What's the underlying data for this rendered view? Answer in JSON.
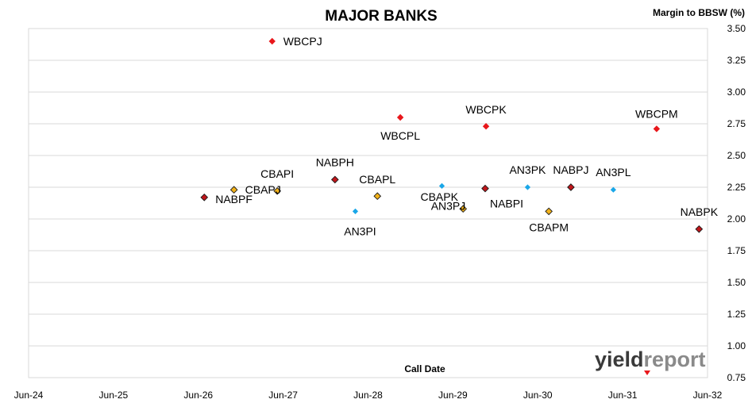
{
  "chart_data": {
    "type": "scatter",
    "title": "MAJOR BANKS",
    "xlabel": "Call Date",
    "ylabel": "Margin to BBSW (%)",
    "ylim": [
      0.75,
      3.5
    ],
    "y_ticks": [
      "0.75",
      "1.00",
      "1.25",
      "1.50",
      "1.75",
      "2.00",
      "2.25",
      "2.50",
      "2.75",
      "3.00",
      "3.25",
      "3.50"
    ],
    "x_ticks": [
      "Jun-24",
      "Jun-25",
      "Jun-26",
      "Jun-27",
      "Jun-28",
      "Jun-29",
      "Jun-30",
      "Jun-31",
      "Jun-32"
    ],
    "grid": "horizontal",
    "watermark": {
      "part1": "yield",
      "part2": "report"
    },
    "colors": {
      "WBC": "#e8171b",
      "NAB": "#c0161b",
      "CBA": "#f2b21b",
      "ANZ": "#1aa7e8"
    },
    "points": [
      {
        "label": "WBCPJ",
        "x": 2.87,
        "y": 3.4,
        "group": "WBC"
      },
      {
        "label": "WBCPL",
        "x": 4.38,
        "y": 2.8,
        "group": "WBC"
      },
      {
        "label": "WBCPK",
        "x": 5.39,
        "y": 2.73,
        "group": "WBC"
      },
      {
        "label": "WBCPM",
        "x": 7.4,
        "y": 2.71,
        "group": "WBC"
      },
      {
        "label": "NABPF",
        "x": 2.07,
        "y": 2.17,
        "group": "NAB"
      },
      {
        "label": "NABPH",
        "x": 3.61,
        "y": 2.31,
        "group": "NAB"
      },
      {
        "label": "NABPI",
        "x": 5.38,
        "y": 2.24,
        "group": "NAB"
      },
      {
        "label": "NABPJ",
        "x": 6.39,
        "y": 2.25,
        "group": "NAB"
      },
      {
        "label": "NABPK",
        "x": 7.9,
        "y": 1.92,
        "group": "NAB"
      },
      {
        "label": "CBAPJ",
        "x": 2.42,
        "y": 2.23,
        "group": "CBA"
      },
      {
        "label": "CBAPI",
        "x": 2.93,
        "y": 2.22,
        "group": "CBA"
      },
      {
        "label": "CBAPL",
        "x": 4.11,
        "y": 2.18,
        "group": "CBA"
      },
      {
        "label": "CBAPK",
        "x": 5.12,
        "y": 2.08,
        "group": "CBA"
      },
      {
        "label": "CBAPM",
        "x": 6.13,
        "y": 2.06,
        "group": "CBA"
      },
      {
        "label": "AN3PI",
        "x": 3.85,
        "y": 2.06,
        "group": "ANZ"
      },
      {
        "label": "AN3PJ",
        "x": 4.87,
        "y": 2.26,
        "group": "ANZ"
      },
      {
        "label": "AN3PK",
        "x": 5.88,
        "y": 2.25,
        "group": "ANZ"
      },
      {
        "label": "AN3PL",
        "x": 6.89,
        "y": 2.23,
        "group": "ANZ"
      }
    ]
  }
}
